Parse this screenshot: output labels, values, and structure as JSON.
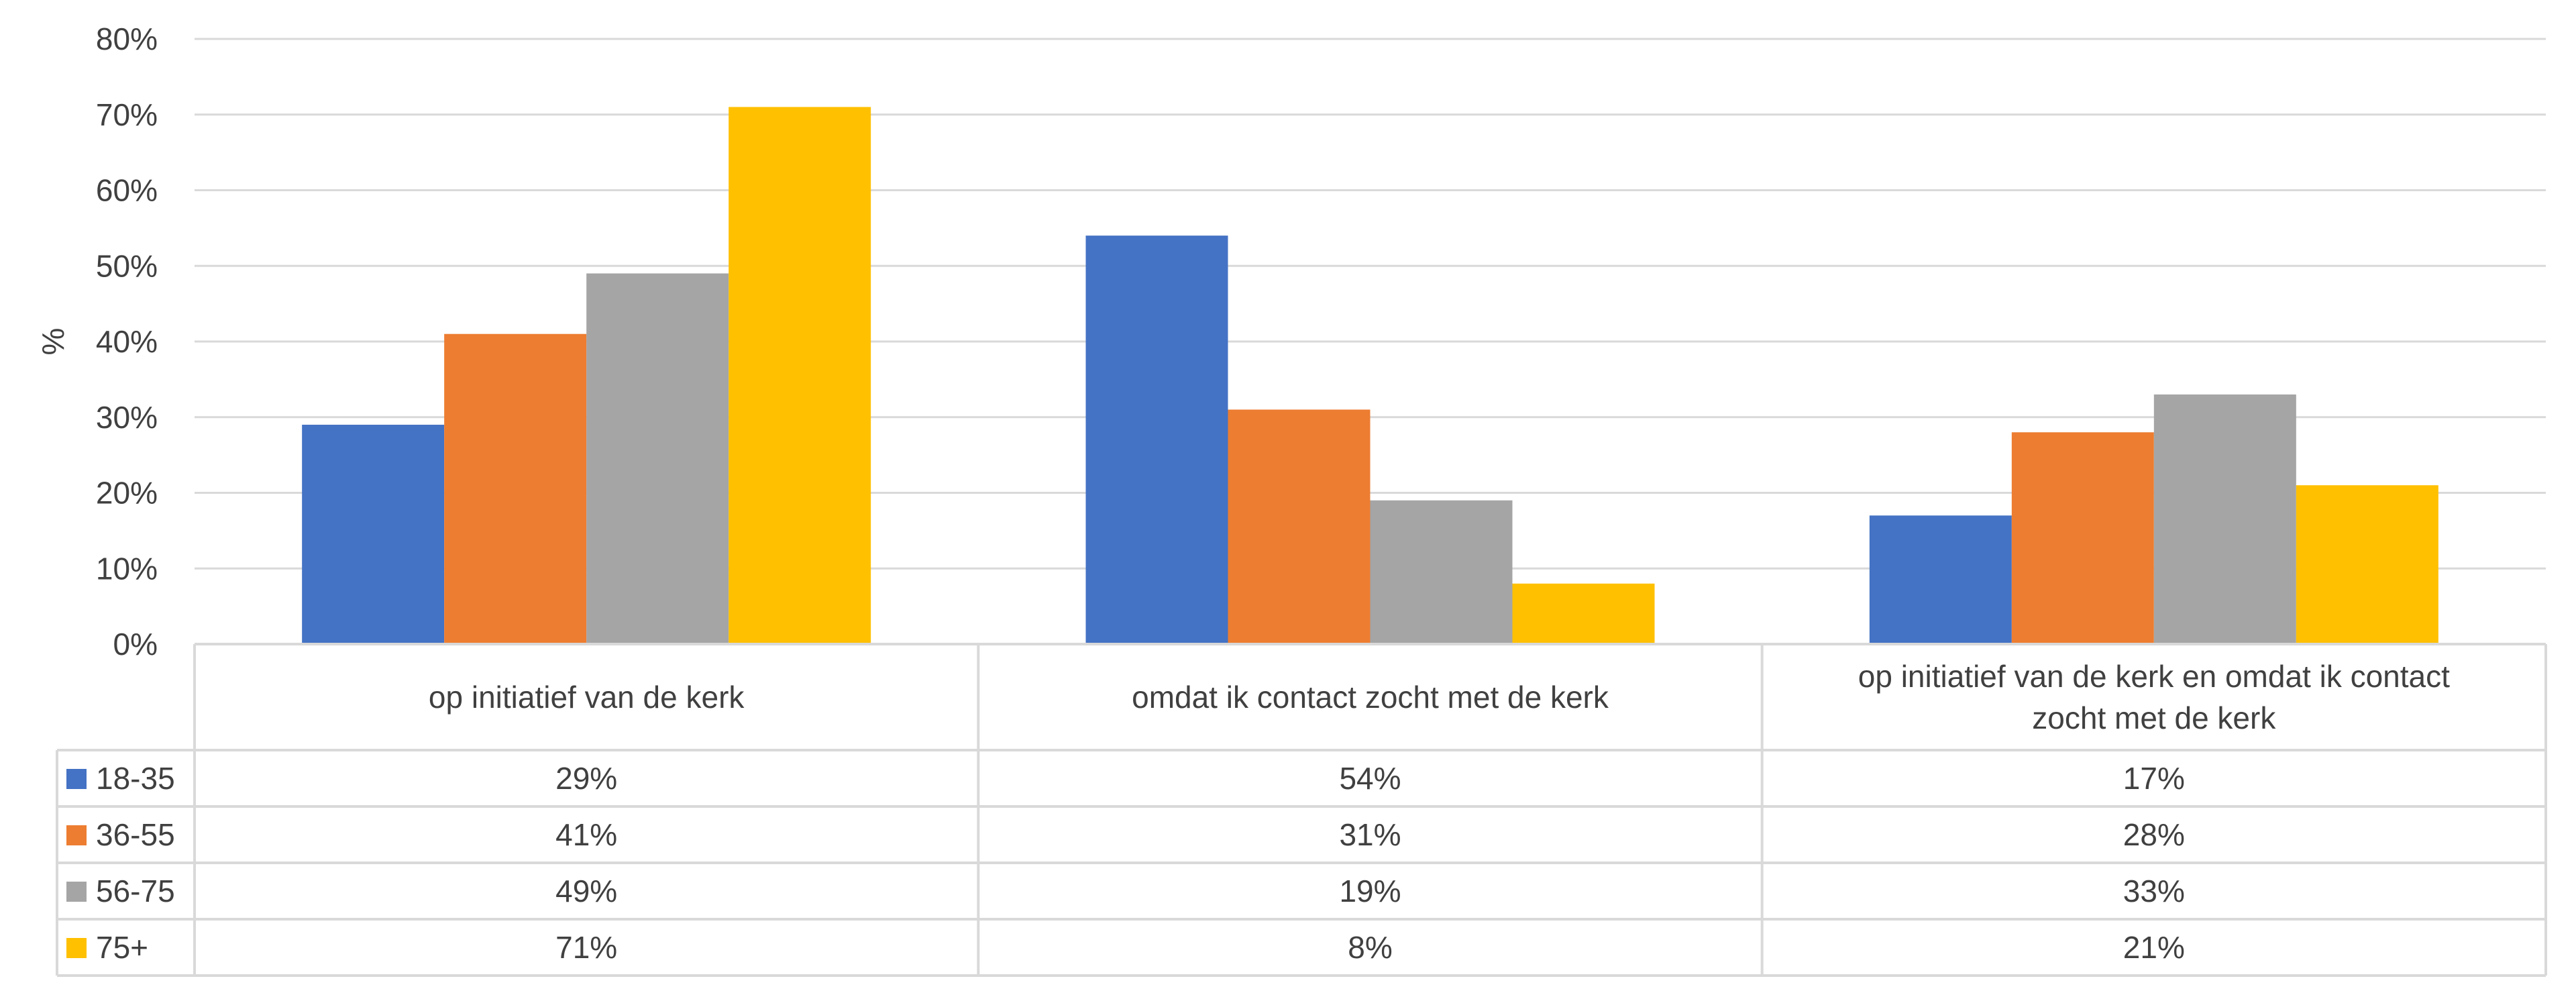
{
  "chart_data": {
    "type": "bar",
    "categories": [
      "op initiatief van de kerk",
      "omdat ik contact zocht met de kerk",
      "op initiatief van de kerk  en omdat ik contact zocht met de kerk"
    ],
    "category_lines": [
      [
        "op initiatief van de kerk"
      ],
      [
        "omdat ik contact zocht met de kerk"
      ],
      [
        "op initiatief van de kerk  en omdat ik contact",
        "zocht met de kerk"
      ]
    ],
    "series": [
      {
        "name": "18-35",
        "color": "#4472C4",
        "values": [
          29,
          54,
          17
        ],
        "labels": [
          "29%",
          "54%",
          "17%"
        ]
      },
      {
        "name": "36-55",
        "color": "#ED7D31",
        "values": [
          41,
          31,
          28
        ],
        "labels": [
          "41%",
          "31%",
          "28%"
        ]
      },
      {
        "name": "56-75",
        "color": "#A5A5A5",
        "values": [
          49,
          19,
          33
        ],
        "labels": [
          "49%",
          "19%",
          "33%"
        ]
      },
      {
        "name": "75+",
        "color": "#FFC000",
        "values": [
          71,
          8,
          21
        ],
        "labels": [
          "71%",
          "8%",
          "21%"
        ]
      }
    ],
    "ylabel": "%",
    "ylim": [
      0,
      80
    ],
    "yticks": [
      0,
      10,
      20,
      30,
      40,
      50,
      60,
      70,
      80
    ],
    "ytick_labels": [
      "0%",
      "10%",
      "20%",
      "30%",
      "40%",
      "50%",
      "60%",
      "70%",
      "80%"
    ],
    "grid": true,
    "legend": "data-table",
    "gridline_color": "#D9D9D9",
    "table_border_color": "#D9D9D9"
  }
}
